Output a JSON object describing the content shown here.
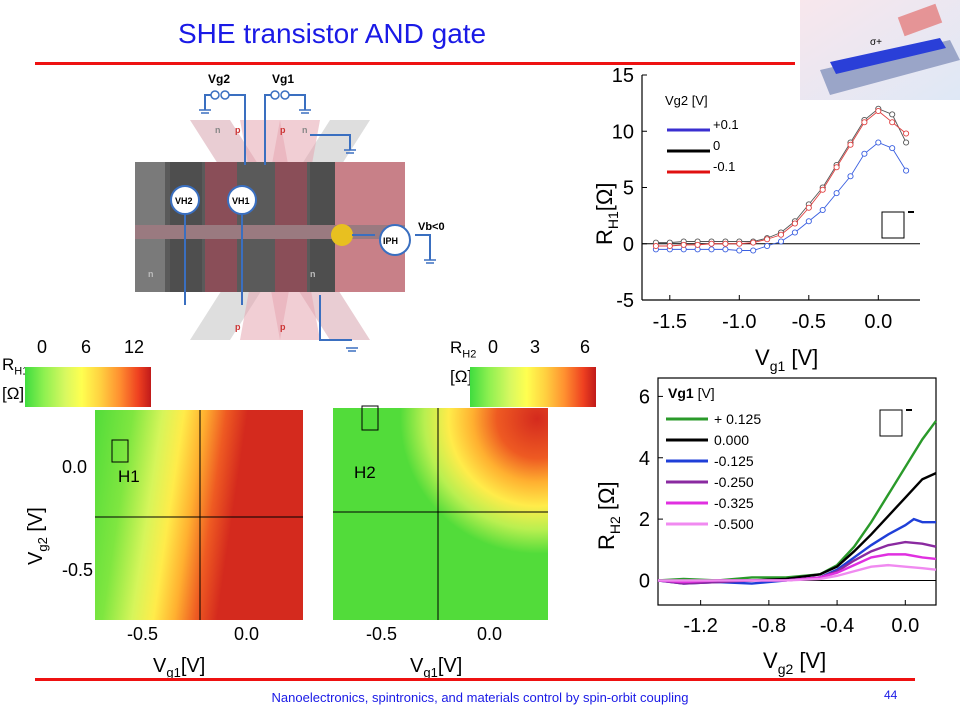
{
  "slide": {
    "title": "SHE transistor AND gate",
    "footer": "Nanoelectronics, spintronics, and materials control by spin-orbit coupling",
    "page_number": "44"
  },
  "device": {
    "gate_labels": [
      "Vg2",
      "Vg1"
    ],
    "hall_labels": [
      "VH2",
      "VH1"
    ],
    "current_label": "IPH",
    "bias_label": "Vb<0",
    "region_letters": [
      "n",
      "p",
      "p",
      "n",
      "n",
      "p",
      "p",
      "n"
    ]
  },
  "colorbars": [
    {
      "quantity": "R",
      "sub": "H1",
      "unit": "[Ω]",
      "ticks": [
        "0",
        "6",
        "12"
      ]
    },
    {
      "quantity": "R",
      "sub": "H2",
      "unit": "[Ω]",
      "ticks": [
        "0",
        "3",
        "6"
      ]
    }
  ],
  "colors": {
    "accent_title": "#1a1ae6",
    "rule": "#e11111",
    "map_high": "#d42a1e",
    "map_low": "#5ee03a",
    "green_series": "#2a9a2a",
    "black_series": "#000000",
    "blue_series": "#1f3fd8",
    "purple_series": "#8a2aa0",
    "magenta_series": "#e030e0",
    "pink_series": "#f08af0"
  },
  "chart_data": [
    {
      "type": "line",
      "id": "rh1",
      "xlabel": "V",
      "xlabel_sub": "g1",
      "xlabel_unit": " [V]",
      "ylabel": "R",
      "ylabel_sub": "H1",
      "ylabel_unit": "[Ω]",
      "xlim": [
        -1.7,
        0.3
      ],
      "ylim": [
        -5,
        15
      ],
      "xticks": [
        "-1.5",
        "-1.0",
        "-0.5",
        "0.0"
      ],
      "xtick_values": [
        -1.5,
        -1.0,
        -0.5,
        0.0
      ],
      "yticks": [
        "15",
        "10",
        "5",
        "0",
        "-5"
      ],
      "ytick_values": [
        15,
        10,
        5,
        0,
        -5
      ],
      "legend_title": "Vg2 [V]",
      "series": [
        {
          "name": "+0.1",
          "color": "#3a5fe0",
          "x": [
            -1.6,
            -1.5,
            -1.4,
            -1.3,
            -1.2,
            -1.1,
            -1.0,
            -0.9,
            -0.8,
            -0.7,
            -0.6,
            -0.5,
            -0.4,
            -0.3,
            -0.2,
            -0.1,
            0.0,
            0.1,
            0.2
          ],
          "y": [
            -0.5,
            -0.5,
            -0.5,
            -0.5,
            -0.5,
            -0.5,
            -0.6,
            -0.6,
            -0.2,
            0.2,
            1.0,
            2.0,
            3.0,
            4.5,
            6.0,
            8.0,
            9.0,
            8.5,
            6.5
          ]
        },
        {
          "name": "0",
          "color": "#555555",
          "x": [
            -1.6,
            -1.5,
            -1.4,
            -1.3,
            -1.2,
            -1.1,
            -1.0,
            -0.9,
            -0.8,
            -0.7,
            -0.6,
            -0.5,
            -0.4,
            -0.3,
            -0.2,
            -0.1,
            0.0,
            0.1,
            0.2
          ],
          "y": [
            0.1,
            0.1,
            0.2,
            0.2,
            0.2,
            0.2,
            0.2,
            0.2,
            0.5,
            1.0,
            2.0,
            3.5,
            5.0,
            7.0,
            9.0,
            11.0,
            12.0,
            11.5,
            9.0
          ]
        },
        {
          "name": "-0.1",
          "color": "#e04040",
          "x": [
            -1.6,
            -1.5,
            -1.4,
            -1.3,
            -1.2,
            -1.1,
            -1.0,
            -0.9,
            -0.8,
            -0.7,
            -0.6,
            -0.5,
            -0.4,
            -0.3,
            -0.2,
            -0.1,
            0.0,
            0.1,
            0.2
          ],
          "y": [
            -0.2,
            -0.2,
            -0.1,
            -0.1,
            0.0,
            0.0,
            0.0,
            0.1,
            0.4,
            0.8,
            1.8,
            3.2,
            4.8,
            6.8,
            8.8,
            10.8,
            11.8,
            10.8,
            9.8
          ]
        }
      ]
    },
    {
      "type": "line",
      "id": "rh2",
      "xlabel": "V",
      "xlabel_sub": "g2",
      "xlabel_unit": " [V]",
      "ylabel": "R",
      "ylabel_sub": "H2",
      "ylabel_unit": " [Ω]",
      "xlim": [
        -1.45,
        0.18
      ],
      "ylim": [
        -0.8,
        6.6
      ],
      "xticks": [
        "-1.2",
        "-0.8",
        "-0.4",
        "0.0"
      ],
      "xtick_values": [
        -1.2,
        -0.8,
        -0.4,
        0.0
      ],
      "yticks": [
        "6",
        "4",
        "2",
        "0"
      ],
      "ytick_values": [
        6,
        4,
        2,
        0
      ],
      "legend_title": "Vg1",
      "legend_title_unit": " [V]",
      "series": [
        {
          "name": "+ 0.125",
          "color": "#2a9a2a",
          "x": [
            -1.45,
            -1.3,
            -1.1,
            -0.9,
            -0.7,
            -0.5,
            -0.4,
            -0.3,
            -0.2,
            -0.1,
            0.0,
            0.1,
            0.18
          ],
          "y": [
            0.0,
            0.05,
            0.0,
            0.1,
            0.1,
            0.2,
            0.5,
            1.1,
            1.9,
            2.8,
            3.7,
            4.6,
            5.2
          ]
        },
        {
          "name": "0.000",
          "color": "#000000",
          "x": [
            -1.45,
            -1.3,
            -1.1,
            -0.9,
            -0.7,
            -0.5,
            -0.4,
            -0.3,
            -0.2,
            -0.1,
            0.0,
            0.1,
            0.18
          ],
          "y": [
            0.0,
            -0.05,
            0.0,
            0.0,
            0.05,
            0.2,
            0.45,
            0.95,
            1.5,
            2.1,
            2.7,
            3.3,
            3.5
          ]
        },
        {
          "name": "-0.125",
          "color": "#1f3fd8",
          "x": [
            -1.45,
            -1.3,
            -1.1,
            -0.9,
            -0.7,
            -0.5,
            -0.4,
            -0.3,
            -0.2,
            -0.1,
            0.0,
            0.05,
            0.1,
            0.18
          ],
          "y": [
            0.0,
            -0.1,
            -0.05,
            -0.1,
            0.0,
            0.1,
            0.35,
            0.75,
            1.15,
            1.5,
            1.8,
            2.0,
            1.9,
            1.9
          ]
        },
        {
          "name": "-0.250",
          "color": "#8a2aa0",
          "x": [
            -1.45,
            -1.3,
            -1.1,
            -0.9,
            -0.7,
            -0.5,
            -0.4,
            -0.3,
            -0.2,
            -0.1,
            0.0,
            0.1,
            0.18
          ],
          "y": [
            0.0,
            -0.1,
            -0.05,
            0.0,
            0.0,
            0.1,
            0.3,
            0.65,
            0.95,
            1.15,
            1.25,
            1.2,
            1.1
          ]
        },
        {
          "name": "-0.325",
          "color": "#e030e0",
          "x": [
            -1.45,
            -1.3,
            -1.1,
            -0.9,
            -0.7,
            -0.5,
            -0.4,
            -0.3,
            -0.2,
            -0.1,
            0.0,
            0.1,
            0.18
          ],
          "y": [
            0.0,
            -0.05,
            0.0,
            0.0,
            0.0,
            0.1,
            0.25,
            0.5,
            0.75,
            0.85,
            0.85,
            0.75,
            0.7
          ]
        },
        {
          "name": "-0.500",
          "color": "#f08af0",
          "x": [
            -1.45,
            -1.3,
            -1.1,
            -0.9,
            -0.7,
            -0.5,
            -0.4,
            -0.3,
            -0.2,
            -0.1,
            0.0,
            0.1,
            0.18
          ],
          "y": [
            0.0,
            0.0,
            0.0,
            0.0,
            0.0,
            0.05,
            0.15,
            0.3,
            0.45,
            0.5,
            0.45,
            0.4,
            0.35
          ]
        }
      ]
    },
    {
      "type": "heatmap",
      "id": "map1",
      "label": "H1",
      "xlabel": "V",
      "xlabel_sub": "g1",
      "xlabel_unit": "[V]",
      "ylabel": "V",
      "ylabel_sub": "g2",
      "ylabel_unit": " [V]",
      "xticks": [
        "-0.5",
        "0.0"
      ],
      "yticks": [
        "0.0",
        "-0.5"
      ]
    },
    {
      "type": "heatmap",
      "id": "map2",
      "label": "H2",
      "xlabel": "V",
      "xlabel_sub": "g1",
      "xlabel_unit": "[V]",
      "xticks": [
        "-0.5",
        "0.0"
      ]
    }
  ]
}
